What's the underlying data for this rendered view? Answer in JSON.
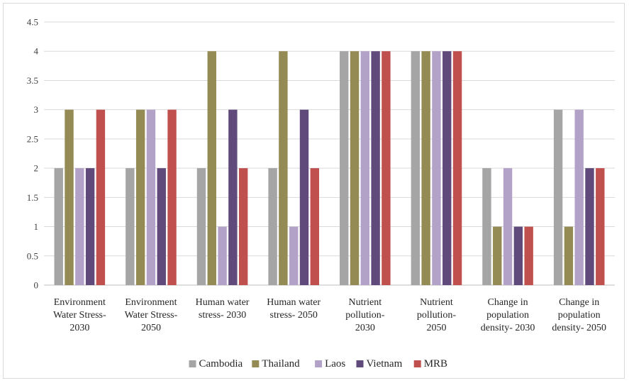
{
  "chart_data": {
    "type": "bar",
    "categories": [
      [
        "Environment",
        "Water Stress-",
        "2030"
      ],
      [
        "Environment",
        "Water Stress-",
        "2050"
      ],
      [
        "Human water",
        "stress- 2030"
      ],
      [
        "Human water",
        "stress- 2050"
      ],
      [
        "Nutrient",
        "pollution-",
        "2030"
      ],
      [
        "Nutrient",
        "pollution-",
        "2050"
      ],
      [
        "Change in",
        "population",
        "density- 2030"
      ],
      [
        "Change in",
        "population",
        "density- 2050"
      ]
    ],
    "series": [
      {
        "name": "Cambodia",
        "color": "#a5a5a5",
        "values": [
          2,
          2,
          2,
          2,
          4,
          4,
          2,
          3
        ]
      },
      {
        "name": "Thailand",
        "color": "#948a54",
        "values": [
          3,
          3,
          4,
          4,
          4,
          4,
          1,
          1
        ]
      },
      {
        "name": "Laos",
        "color": "#b3a2c7",
        "values": [
          2,
          3,
          1,
          1,
          4,
          4,
          2,
          3
        ]
      },
      {
        "name": "Vietnam",
        "color": "#604a7b",
        "values": [
          2,
          2,
          3,
          3,
          4,
          4,
          1,
          2
        ]
      },
      {
        "name": "MRB",
        "color": "#c0504d",
        "values": [
          3,
          3,
          2,
          2,
          4,
          4,
          1,
          2
        ]
      }
    ],
    "ylim": [
      0,
      4.5
    ],
    "yticks": [
      "0",
      "0.5",
      "1",
      "1.5",
      "2",
      "2.5",
      "3",
      "3.5",
      "4",
      "4.5"
    ],
    "grid": true,
    "legend": "bottom"
  }
}
